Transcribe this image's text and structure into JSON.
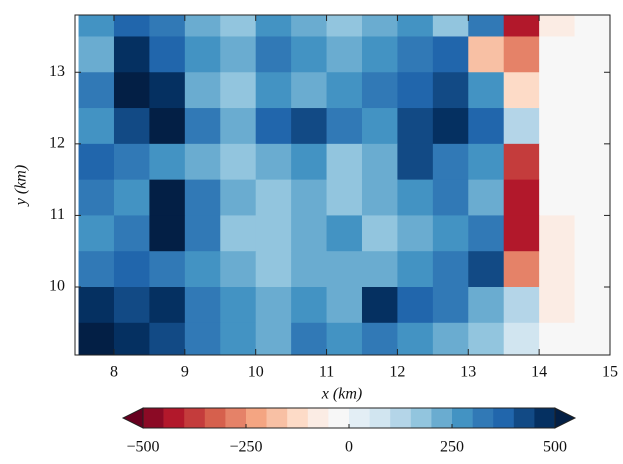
{
  "chart_data": {
    "type": "heatmap",
    "xlabel": "x (km)",
    "ylabel": "y (km)",
    "xlim": [
      7.45,
      15
    ],
    "ylim": [
      9.05,
      13.8
    ],
    "xticks": [
      8,
      9,
      10,
      11,
      12,
      13,
      14,
      15
    ],
    "yticks": [
      10,
      11,
      12,
      13
    ],
    "x": [
      7.75,
      8.25,
      8.75,
      9.25,
      9.75,
      10.25,
      10.75,
      11.25,
      11.75,
      12.25,
      12.75,
      13.25,
      13.75,
      14.25,
      14.75
    ],
    "y": [
      13.75,
      13.25,
      12.75,
      12.25,
      11.75,
      11.25,
      10.75,
      10.25,
      9.75,
      9.25
    ],
    "z": [
      [
        250,
        350,
        300,
        200,
        150,
        250,
        200,
        150,
        200,
        250,
        150,
        300,
        -450,
        -100,
        -30
      ],
      [
        200,
        450,
        350,
        250,
        200,
        300,
        250,
        200,
        250,
        300,
        350,
        -200,
        -300,
        -50,
        -30
      ],
      [
        300,
        500,
        450,
        200,
        150,
        250,
        200,
        250,
        300,
        350,
        400,
        250,
        -150,
        -30,
        -30
      ],
      [
        250,
        400,
        500,
        300,
        200,
        350,
        400,
        300,
        250,
        400,
        450,
        350,
        100,
        -30,
        -30
      ],
      [
        350,
        300,
        250,
        200,
        150,
        200,
        250,
        150,
        200,
        400,
        300,
        250,
        -400,
        -30,
        -30
      ],
      [
        300,
        250,
        500,
        300,
        200,
        150,
        200,
        150,
        200,
        250,
        300,
        200,
        -450,
        -50,
        -30
      ],
      [
        250,
        300,
        500,
        300,
        150,
        150,
        200,
        250,
        150,
        200,
        250,
        300,
        -450,
        -80,
        -30
      ],
      [
        300,
        350,
        300,
        250,
        200,
        150,
        200,
        200,
        200,
        250,
        300,
        400,
        -300,
        -80,
        -30
      ],
      [
        450,
        400,
        450,
        300,
        250,
        200,
        250,
        200,
        450,
        350,
        300,
        200,
        100,
        -80,
        -30
      ],
      [
        500,
        450,
        400,
        300,
        250,
        200,
        300,
        250,
        300,
        250,
        200,
        150,
        50,
        -50,
        -30
      ]
    ],
    "levels": [
      -500,
      -450,
      -400,
      -350,
      -300,
      -250,
      -200,
      -150,
      -100,
      -50,
      0,
      50,
      100,
      150,
      200,
      250,
      300,
      350,
      400,
      450,
      500
    ],
    "colors": [
      "#67001f",
      "#8b0a25",
      "#b2182b",
      "#c43c3c",
      "#d6604d",
      "#e58268",
      "#f4a582",
      "#f8c0a4",
      "#fddbc7",
      "#fbece4",
      "#f7f7f7",
      "#e3eef5",
      "#d1e5f0",
      "#b4d5e8",
      "#92c5de",
      "#6aacd0",
      "#4393c3",
      "#3179b6",
      "#2166ac",
      "#124a85",
      "#053061",
      "#031f45"
    ],
    "cbar_ticks": [
      {
        "value": -500,
        "label": "−500"
      },
      {
        "value": -250,
        "label": "−250"
      },
      0,
      250,
      500
    ]
  }
}
